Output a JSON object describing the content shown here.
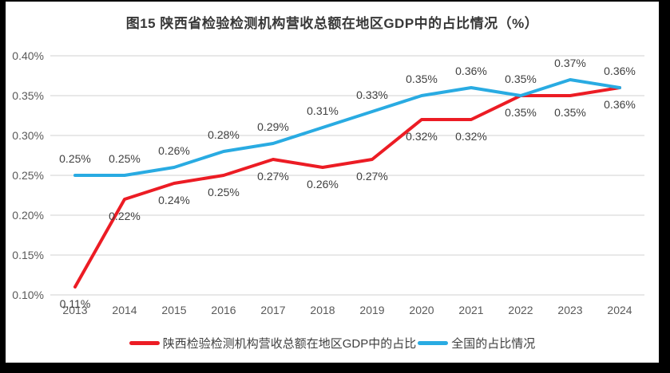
{
  "title": "图15 陕西省检验检测机构营收总额在地区GDP中的占比情况（%）",
  "colors": {
    "frame": "#000000",
    "chart_background": "#FFFFFF",
    "gridline": "#D9D9D9",
    "axis_text": "#595959",
    "data_label_text": "#404040",
    "title_text": "#383838",
    "series_shaanxi": "#EC1C24",
    "series_national": "#29ABE2"
  },
  "chart_data": {
    "type": "line",
    "title": "图15 陕西省检验检测机构营收总额在地区GDP中的占比情况（%）",
    "x": [
      "2013",
      "2014",
      "2015",
      "2016",
      "2017",
      "2018",
      "2019",
      "2020",
      "2021",
      "2022",
      "2023",
      "2024"
    ],
    "series": [
      {
        "name": "陕西检验检测机构营收总额在地区GDP中的占比",
        "color": "#EC1C24",
        "values": [
          0.11,
          0.22,
          0.24,
          0.25,
          0.27,
          0.26,
          0.27,
          0.32,
          0.32,
          0.35,
          0.35,
          0.36
        ],
        "data_labels": [
          "0.11%",
          "0.22%",
          "0.24%",
          "0.25%",
          "0.27%",
          "0.26%",
          "0.27%",
          "0.32%",
          "0.32%",
          "0.35%",
          "0.35%",
          "0.36%"
        ],
        "label_position": "below"
      },
      {
        "name": "全国的占比情况",
        "color": "#29ABE2",
        "values": [
          0.25,
          0.25,
          0.26,
          0.28,
          0.29,
          0.31,
          0.33,
          0.35,
          0.36,
          0.35,
          0.37,
          0.36
        ],
        "data_labels": [
          "0.25%",
          "0.25%",
          "0.26%",
          "0.28%",
          "0.29%",
          "0.31%",
          "0.33%",
          "0.35%",
          "0.36%",
          "0.35%",
          "0.37%",
          "0.36%"
        ],
        "label_position": "above"
      }
    ],
    "ylim": [
      0.1,
      0.4
    ],
    "ytick_step": 0.05,
    "ytick_labels": [
      "0.10%",
      "0.15%",
      "0.20%",
      "0.25%",
      "0.30%",
      "0.35%",
      "0.40%"
    ],
    "yunit": "%",
    "grid": true,
    "legend_position": "bottom"
  }
}
